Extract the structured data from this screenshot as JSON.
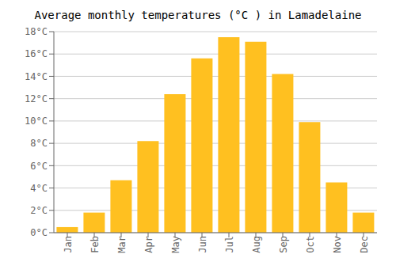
{
  "chart_data": {
    "type": "bar",
    "title": "Average monthly temperatures (°C ) in Lamadelaine",
    "categories": [
      "Jan",
      "Feb",
      "Mar",
      "Apr",
      "May",
      "Jun",
      "Jul",
      "Aug",
      "Sep",
      "Oct",
      "Nov",
      "Dec"
    ],
    "values": [
      0.5,
      1.8,
      4.7,
      8.2,
      12.4,
      15.6,
      17.5,
      17.1,
      14.2,
      9.9,
      4.5,
      1.8
    ],
    "color": "#FFC020",
    "ylim": [
      0,
      18
    ],
    "yticks": [
      {
        "value": 0,
        "label": "0°C"
      },
      {
        "value": 2,
        "label": "2°C"
      },
      {
        "value": 4,
        "label": "4°C"
      },
      {
        "value": 6,
        "label": "6°C"
      },
      {
        "value": 8,
        "label": "8°C"
      },
      {
        "value": 10,
        "label": "10°C"
      },
      {
        "value": 12,
        "label": "12°C"
      },
      {
        "value": 14,
        "label": "14°C"
      },
      {
        "value": 16,
        "label": "16°C"
      },
      {
        "value": 18,
        "label": "18°C"
      }
    ],
    "grid": true
  }
}
